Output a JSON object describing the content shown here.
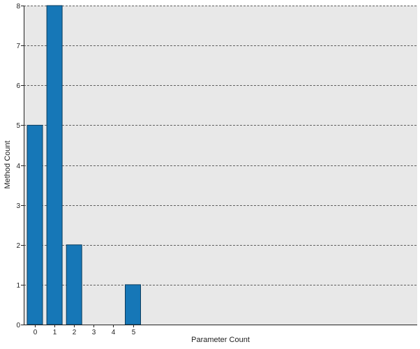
{
  "chart_data": {
    "type": "bar",
    "categories": [
      "0",
      "1",
      "2",
      "3",
      "4",
      "5"
    ],
    "values": [
      5,
      8,
      2,
      0,
      0,
      1
    ],
    "title": "",
    "xlabel": "Parameter Count",
    "ylabel": "Method Count",
    "ylim": [
      0,
      8
    ],
    "yticks": [
      "0",
      "1",
      "2",
      "3",
      "4",
      "5",
      "6",
      "7",
      "8"
    ],
    "grid": "horizontal dashed",
    "legend": "none"
  },
  "colors": {
    "bar_fill": "#1677b7",
    "bar_stroke": "#0b3c5d",
    "plot_background": "#e8e8e8",
    "grid": "#333333",
    "axis": "#222222"
  }
}
